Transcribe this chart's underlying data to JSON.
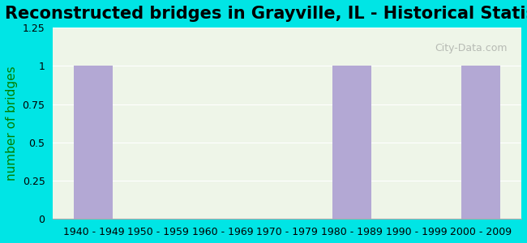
{
  "title": "Reconstructed bridges in Grayville, IL - Historical Statistics",
  "ylabel": "number of bridges",
  "categories": [
    "1940 - 1949",
    "1950 - 1959",
    "1960 - 1969",
    "1970 - 1979",
    "1980 - 1989",
    "1990 - 1999",
    "2000 - 2009"
  ],
  "values": [
    1,
    0,
    0,
    0,
    1,
    0,
    1
  ],
  "bar_color": "#b3a8d4",
  "background_color": "#00e5e5",
  "plot_bg_color": "#eef5e8",
  "ylim": [
    0,
    1.25
  ],
  "yticks": [
    0,
    0.25,
    0.5,
    0.75,
    1,
    1.25
  ],
  "title_fontsize": 15,
  "ylabel_fontsize": 11,
  "tick_fontsize": 9,
  "watermark": "City-Data.com"
}
